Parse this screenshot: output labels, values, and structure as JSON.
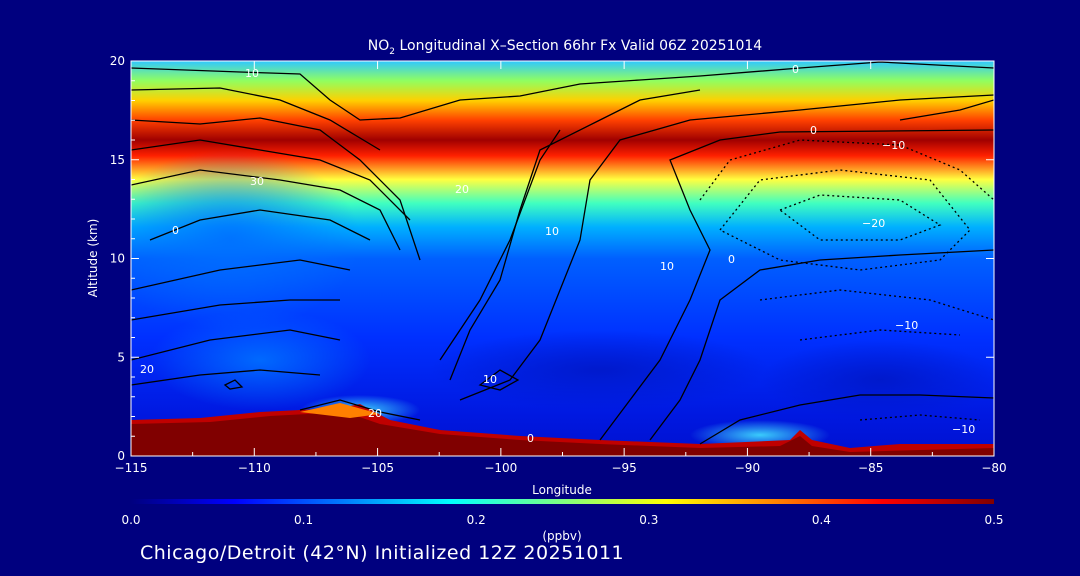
{
  "chart_data": {
    "type": "heatmap",
    "title_prefix": "NO",
    "title_sub": "2",
    "title_rest": " Longitudinal X–Section 66hr  Fx Valid 06Z 20251014",
    "xlabel": "Longitude",
    "ylabel": "Altitude (km)",
    "xlim": [
      -115,
      -80
    ],
    "ylim": [
      0,
      20
    ],
    "xticks": [
      "−115",
      "−110",
      "−105",
      "−100",
      "−95",
      "−90",
      "−85",
      "−80"
    ],
    "yticks": [
      "0",
      "5",
      "10",
      "15",
      "20"
    ],
    "colorbar": {
      "label": "(ppbv)",
      "range": [
        0.0,
        0.5
      ],
      "ticks": [
        "0.0",
        "0.1",
        "0.2",
        "0.3",
        "0.4",
        "0.5"
      ],
      "colors": [
        "#00007f",
        "#0000ff",
        "#0080ff",
        "#00ffff",
        "#80ff80",
        "#ffff00",
        "#ff8000",
        "#ff0000",
        "#800000"
      ]
    },
    "contour_labels": [
      "10",
      "0",
      "0",
      "−10",
      "30",
      "20",
      "10",
      "0",
      "0",
      "−20",
      "−10",
      "20",
      "20",
      "10",
      "0",
      "−10",
      "10"
    ],
    "subtitle": "Chicago/Detroit (42°N) Initialized 12Z 20251011"
  }
}
